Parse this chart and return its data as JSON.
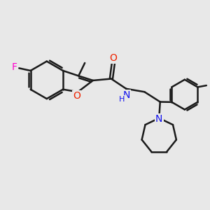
{
  "bg_color": "#e8e8e8",
  "bond_color": "#1a1a1a",
  "bond_width": 1.8,
  "atom_colors": {
    "F": "#ff00cc",
    "O": "#ee2200",
    "N": "#1111ee",
    "C": "#1a1a1a"
  },
  "font_size": 9,
  "figsize": [
    3.0,
    3.0
  ],
  "dpi": 100
}
